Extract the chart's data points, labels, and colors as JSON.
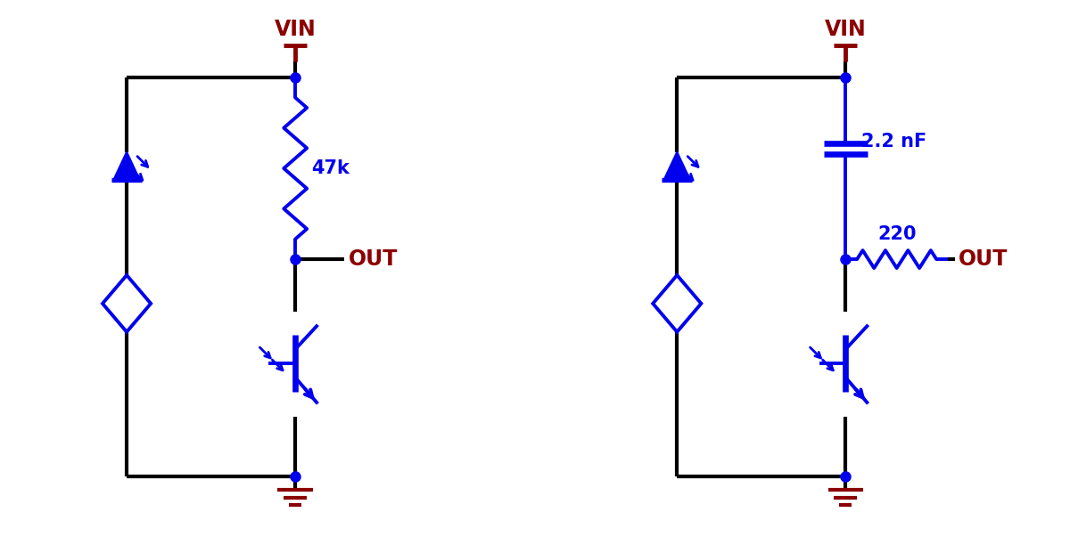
{
  "bg_color": "#ffffff",
  "wire_color": "#000000",
  "blue": "#0000ee",
  "dark_red": "#8b0000",
  "lw_wire": 3.0,
  "lw_comp": 2.8,
  "dot_size": 8,
  "circuit1": {
    "vin_label": "VIN",
    "out_label": "OUT",
    "resistor_label": "47k"
  },
  "circuit2": {
    "vin_label": "VIN",
    "out_label": "OUT",
    "cap_label": "2.2 nF",
    "resistor_label": "220"
  }
}
